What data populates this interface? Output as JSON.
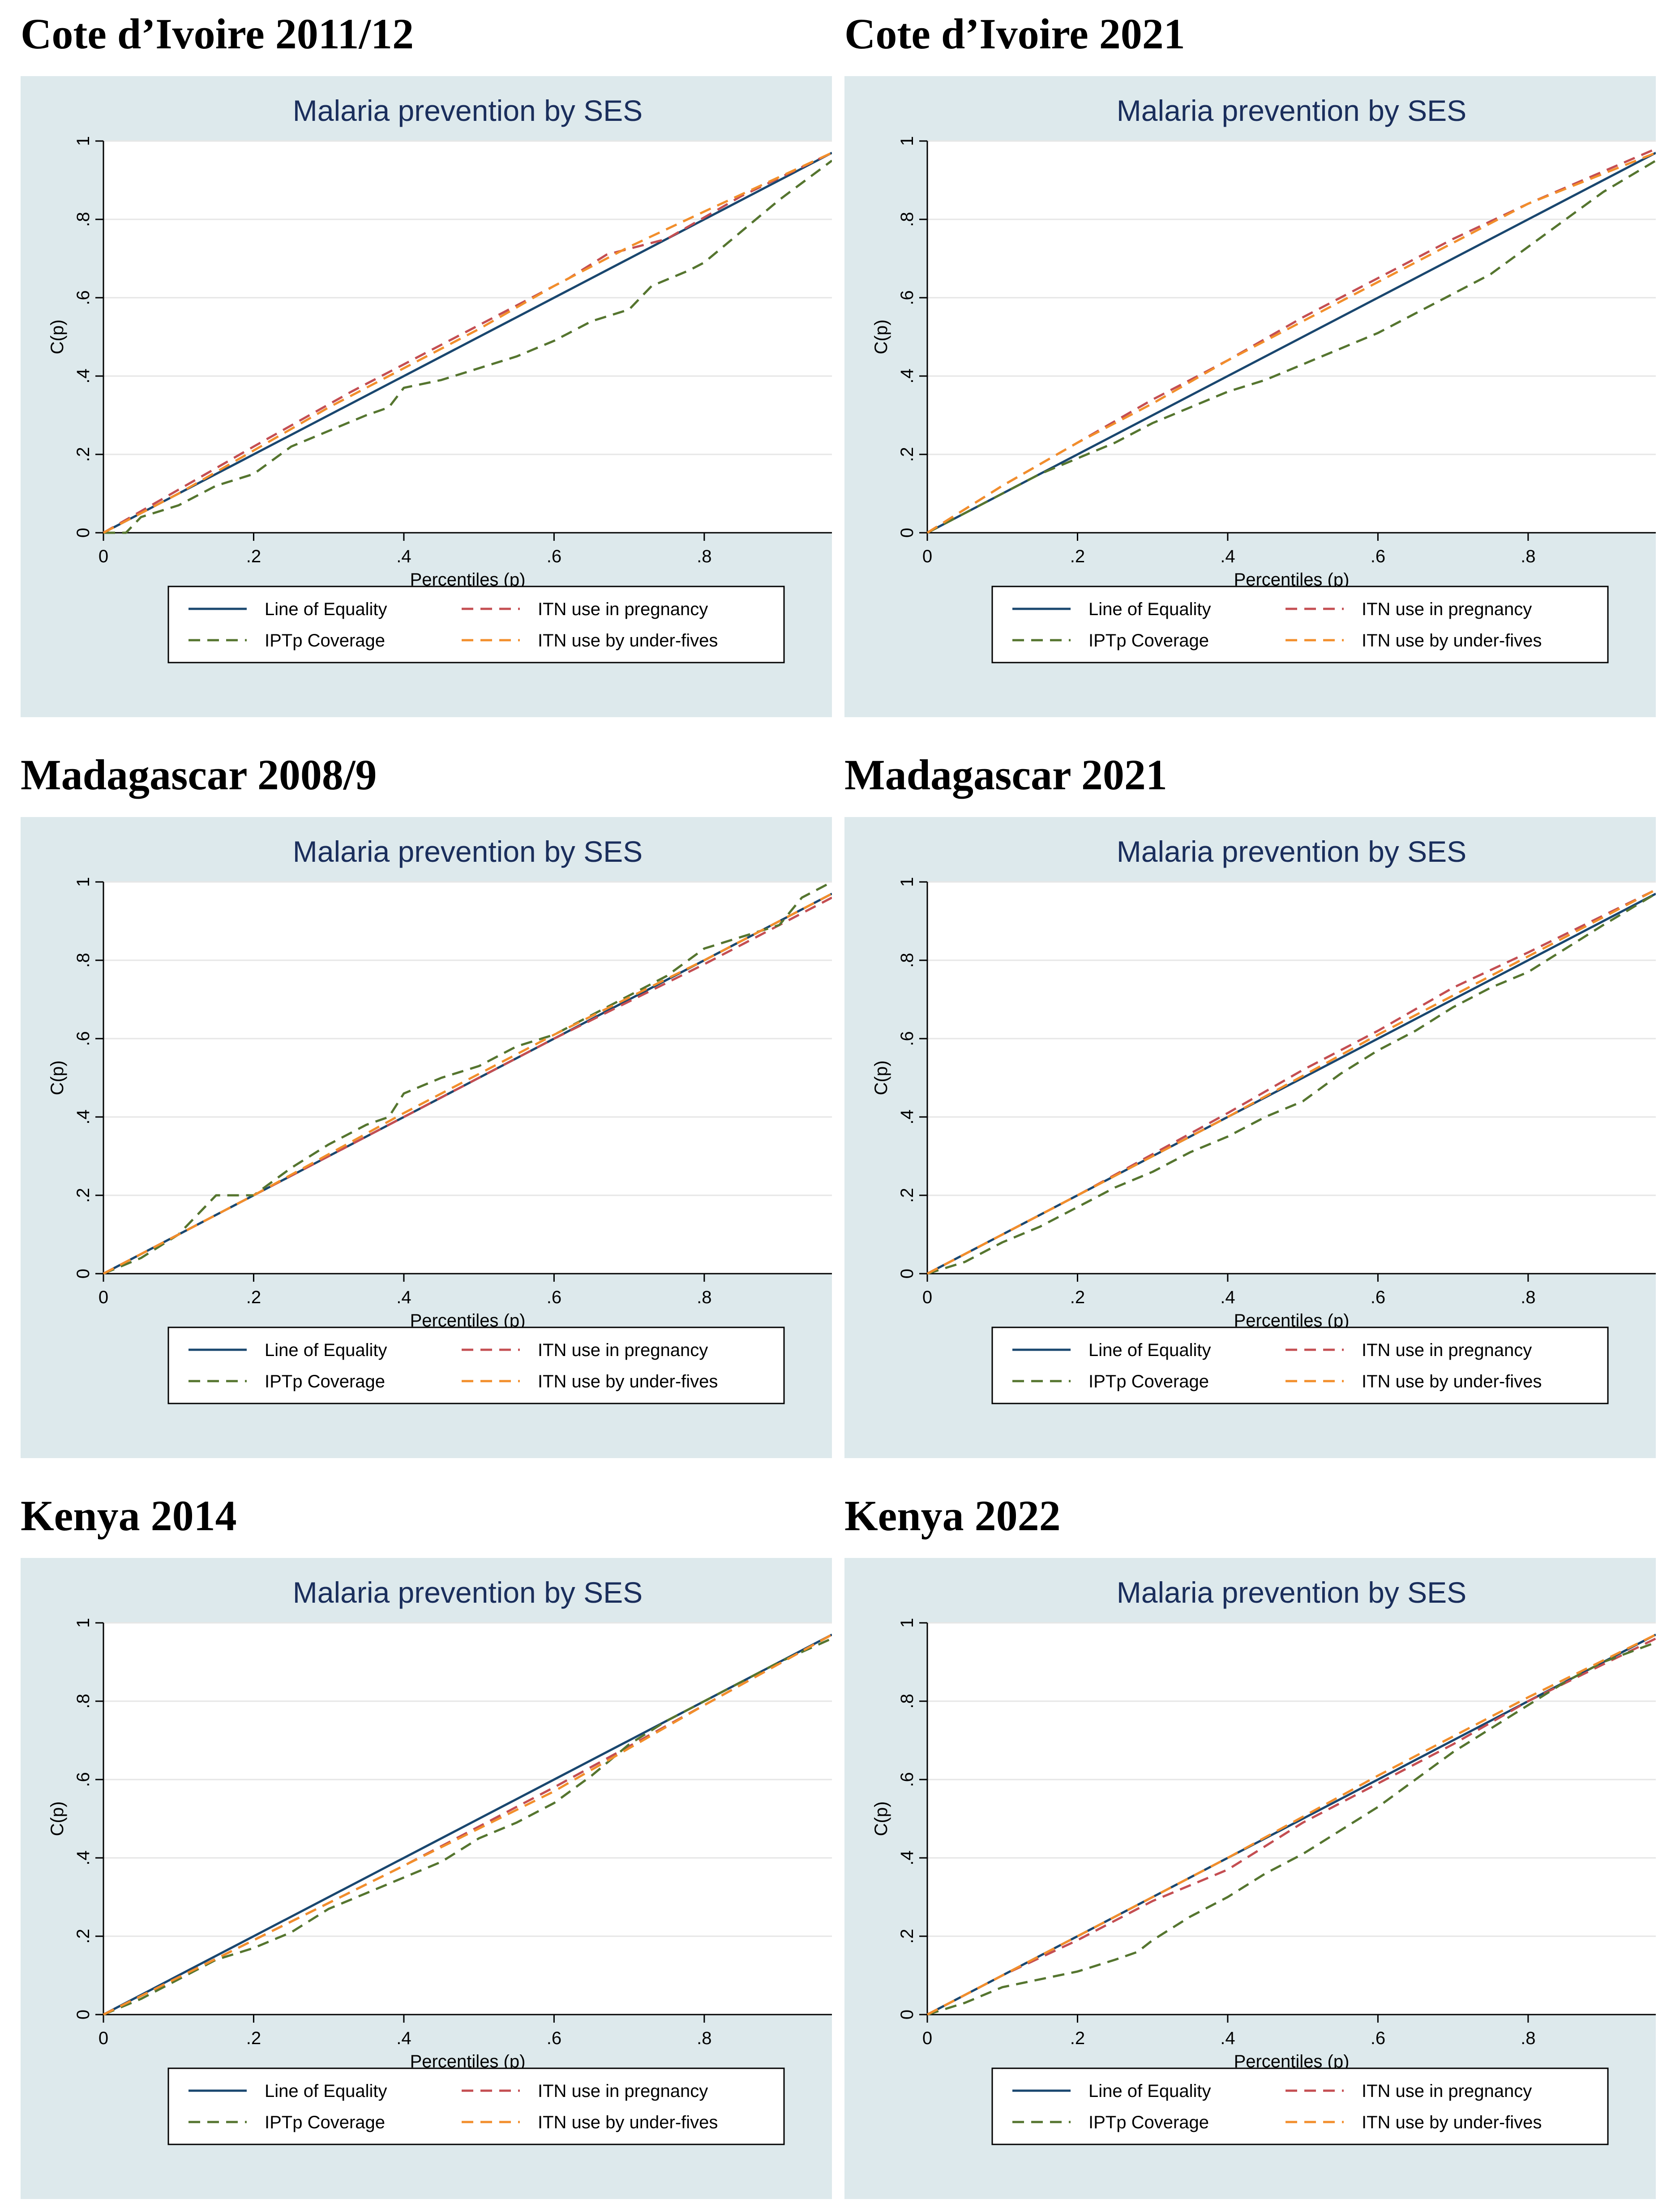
{
  "figure": {
    "panels": [
      {
        "heading": "Cote d’Ivoire 2011/12",
        "chart_index": 0
      },
      {
        "heading": "Cote d’Ivoire 2021",
        "chart_index": 1
      },
      {
        "heading": "Madagascar 2008/9",
        "chart_index": 2
      },
      {
        "heading": "Madagascar 2021",
        "chart_index": 3
      },
      {
        "heading": "Kenya 2014",
        "chart_index": 4
      },
      {
        "heading": "Kenya 2022",
        "chart_index": 5
      }
    ]
  },
  "colors": {
    "background_band": "#dde9ec",
    "plot_bg": "#ffffff",
    "title": "#1a2e5c",
    "equality": "#1a476f",
    "itn_pregnancy": "#c44e52",
    "iptp": "#55752f",
    "itn_under5": "#f28e2b"
  },
  "chart_data": [
    {
      "type": "line",
      "title": "Malaria prevention by SES",
      "xlabel": "Percentiles (p)",
      "ylabel": "C(p)",
      "xlim": [
        0,
        0.97
      ],
      "ylim": [
        0,
        1
      ],
      "xticks": [
        {
          "v": 0,
          "label": "0"
        },
        {
          "v": 0.2,
          "label": ".2"
        },
        {
          "v": 0.4,
          "label": ".4"
        },
        {
          "v": 0.6,
          "label": ".6"
        },
        {
          "v": 0.8,
          "label": ".8"
        }
      ],
      "yticks": [
        {
          "v": 0,
          "label": "0"
        },
        {
          "v": 0.2,
          "label": ".2"
        },
        {
          "v": 0.4,
          "label": ".4"
        },
        {
          "v": 0.6,
          "label": ".6"
        },
        {
          "v": 0.8,
          "label": ".8"
        },
        {
          "v": 1,
          "label": "1"
        }
      ],
      "legend_position": "bottom",
      "series": [
        {
          "name": "Line of Equality",
          "style": "solid",
          "color_key": "equality",
          "x": [
            0,
            0.97
          ],
          "y": [
            0,
            0.97
          ]
        },
        {
          "name": "ITN use in pregnancy",
          "style": "dashed",
          "color_key": "itn_pregnancy",
          "x": [
            0,
            0.1,
            0.2,
            0.33,
            0.4,
            0.5,
            0.62,
            0.67,
            0.75,
            0.85,
            0.97
          ],
          "y": [
            0,
            0.11,
            0.22,
            0.36,
            0.43,
            0.53,
            0.65,
            0.71,
            0.75,
            0.86,
            0.97
          ]
        },
        {
          "name": "IPTp Coverage",
          "style": "dashed",
          "color_key": "iptp",
          "x": [
            0,
            0.03,
            0.05,
            0.1,
            0.15,
            0.2,
            0.25,
            0.3,
            0.35,
            0.38,
            0.4,
            0.45,
            0.5,
            0.55,
            0.6,
            0.65,
            0.7,
            0.73,
            0.78,
            0.8,
            0.85,
            0.9,
            0.97
          ],
          "y": [
            0,
            0,
            0.04,
            0.07,
            0.12,
            0.15,
            0.22,
            0.26,
            0.3,
            0.32,
            0.37,
            0.39,
            0.42,
            0.45,
            0.49,
            0.54,
            0.57,
            0.63,
            0.67,
            0.69,
            0.77,
            0.85,
            0.95
          ]
        },
        {
          "name": "ITN use by under-fives",
          "style": "dashed",
          "color_key": "itn_under5",
          "x": [
            0,
            0.1,
            0.2,
            0.3,
            0.4,
            0.5,
            0.6,
            0.7,
            0.8,
            0.97
          ],
          "y": [
            0,
            0.1,
            0.21,
            0.32,
            0.42,
            0.52,
            0.63,
            0.73,
            0.82,
            0.97
          ]
        }
      ],
      "legend_order": [
        0,
        1,
        2,
        3
      ]
    },
    {
      "type": "line",
      "title": "Malaria prevention by SES",
      "xlabel": "Percentiles (p)",
      "ylabel": "C(p)",
      "xlim": [
        0,
        0.97
      ],
      "ylim": [
        0,
        1
      ],
      "xticks": [
        {
          "v": 0,
          "label": "0"
        },
        {
          "v": 0.2,
          "label": ".2"
        },
        {
          "v": 0.4,
          "label": ".4"
        },
        {
          "v": 0.6,
          "label": ".6"
        },
        {
          "v": 0.8,
          "label": ".8"
        }
      ],
      "yticks": [
        {
          "v": 0,
          "label": "0"
        },
        {
          "v": 0.2,
          "label": ".2"
        },
        {
          "v": 0.4,
          "label": ".4"
        },
        {
          "v": 0.6,
          "label": ".6"
        },
        {
          "v": 0.8,
          "label": ".8"
        },
        {
          "v": 1,
          "label": "1"
        }
      ],
      "legend_position": "bottom",
      "series": [
        {
          "name": "Line of Equality",
          "style": "solid",
          "color_key": "equality",
          "x": [
            0,
            0.97
          ],
          "y": [
            0,
            0.97
          ]
        },
        {
          "name": "ITN use in pregnancy",
          "style": "dashed",
          "color_key": "itn_pregnancy",
          "x": [
            0,
            0.1,
            0.2,
            0.3,
            0.4,
            0.5,
            0.6,
            0.7,
            0.8,
            0.97
          ],
          "y": [
            0,
            0.12,
            0.23,
            0.34,
            0.44,
            0.55,
            0.65,
            0.75,
            0.84,
            0.98
          ]
        },
        {
          "name": "IPTp Coverage",
          "style": "dashed",
          "color_key": "iptp",
          "x": [
            0,
            0.1,
            0.15,
            0.2,
            0.25,
            0.3,
            0.35,
            0.4,
            0.45,
            0.5,
            0.55,
            0.6,
            0.65,
            0.7,
            0.75,
            0.8,
            0.85,
            0.9,
            0.97
          ],
          "y": [
            0,
            0.1,
            0.15,
            0.19,
            0.23,
            0.28,
            0.32,
            0.36,
            0.39,
            0.43,
            0.47,
            0.51,
            0.56,
            0.61,
            0.66,
            0.73,
            0.8,
            0.87,
            0.95
          ]
        },
        {
          "name": "ITN use by under-fives",
          "style": "dashed",
          "color_key": "itn_under5",
          "x": [
            0,
            0.1,
            0.2,
            0.3,
            0.4,
            0.5,
            0.6,
            0.7,
            0.8,
            0.97
          ],
          "y": [
            0,
            0.12,
            0.23,
            0.33,
            0.44,
            0.54,
            0.64,
            0.74,
            0.84,
            0.97
          ]
        }
      ],
      "legend_order": [
        0,
        1,
        2,
        3
      ]
    },
    {
      "type": "line",
      "title": "Malaria prevention by SES",
      "xlabel": "Percentiles (p)",
      "ylabel": "C(p)",
      "xlim": [
        0,
        0.97
      ],
      "ylim": [
        0,
        1
      ],
      "xticks": [
        {
          "v": 0,
          "label": "0"
        },
        {
          "v": 0.2,
          "label": ".2"
        },
        {
          "v": 0.4,
          "label": ".4"
        },
        {
          "v": 0.6,
          "label": ".6"
        },
        {
          "v": 0.8,
          "label": ".8"
        }
      ],
      "yticks": [
        {
          "v": 0,
          "label": "0"
        },
        {
          "v": 0.2,
          "label": ".2"
        },
        {
          "v": 0.4,
          "label": ".4"
        },
        {
          "v": 0.6,
          "label": ".6"
        },
        {
          "v": 0.8,
          "label": ".8"
        },
        {
          "v": 1,
          "label": "1"
        }
      ],
      "legend_position": "bottom",
      "series": [
        {
          "name": "Line of Equality",
          "style": "solid",
          "color_key": "equality",
          "x": [
            0,
            0.97
          ],
          "y": [
            0,
            0.97
          ]
        },
        {
          "name": "ITN use in pregnancy",
          "style": "dashed",
          "color_key": "itn_pregnancy",
          "x": [
            0,
            0.2,
            0.4,
            0.6,
            0.8,
            0.97
          ],
          "y": [
            0,
            0.2,
            0.4,
            0.6,
            0.79,
            0.96
          ]
        },
        {
          "name": "IPTp Coverage",
          "style": "dashed",
          "color_key": "iptp",
          "x": [
            0,
            0.05,
            0.1,
            0.15,
            0.2,
            0.25,
            0.3,
            0.35,
            0.38,
            0.4,
            0.45,
            0.5,
            0.55,
            0.6,
            0.65,
            0.7,
            0.75,
            0.8,
            0.85,
            0.9,
            0.93,
            0.97
          ],
          "y": [
            0,
            0.04,
            0.1,
            0.2,
            0.2,
            0.27,
            0.33,
            0.38,
            0.4,
            0.46,
            0.5,
            0.53,
            0.58,
            0.61,
            0.66,
            0.71,
            0.76,
            0.83,
            0.86,
            0.89,
            0.96,
            1.0
          ]
        },
        {
          "name": "ITN use by under-fives",
          "style": "dashed",
          "color_key": "itn_under5",
          "x": [
            0,
            0.2,
            0.4,
            0.6,
            0.8,
            0.97
          ],
          "y": [
            0,
            0.2,
            0.41,
            0.61,
            0.8,
            0.97
          ]
        }
      ],
      "legend_order": [
        0,
        1,
        2,
        3
      ]
    },
    {
      "type": "line",
      "title": "Malaria prevention by SES",
      "xlabel": "Percentiles (p)",
      "ylabel": "C(p)",
      "xlim": [
        0,
        0.97
      ],
      "ylim": [
        0,
        1
      ],
      "xticks": [
        {
          "v": 0,
          "label": "0"
        },
        {
          "v": 0.2,
          "label": ".2"
        },
        {
          "v": 0.4,
          "label": ".4"
        },
        {
          "v": 0.6,
          "label": ".6"
        },
        {
          "v": 0.8,
          "label": ".8"
        }
      ],
      "yticks": [
        {
          "v": 0,
          "label": "0"
        },
        {
          "v": 0.2,
          "label": ".2"
        },
        {
          "v": 0.4,
          "label": ".4"
        },
        {
          "v": 0.6,
          "label": ".6"
        },
        {
          "v": 0.8,
          "label": ".8"
        },
        {
          "v": 1,
          "label": "1"
        }
      ],
      "legend_position": "bottom",
      "series": [
        {
          "name": "Line of Equality",
          "style": "solid",
          "color_key": "equality",
          "x": [
            0,
            0.97
          ],
          "y": [
            0,
            0.97
          ]
        },
        {
          "name": "ITN use in pregnancy",
          "style": "dashed",
          "color_key": "itn_pregnancy",
          "x": [
            0,
            0.2,
            0.4,
            0.5,
            0.6,
            0.7,
            0.8,
            0.97
          ],
          "y": [
            0,
            0.2,
            0.41,
            0.52,
            0.62,
            0.73,
            0.82,
            0.98
          ]
        },
        {
          "name": "IPTp Coverage",
          "style": "dashed",
          "color_key": "iptp",
          "x": [
            0,
            0.05,
            0.1,
            0.15,
            0.2,
            0.25,
            0.3,
            0.35,
            0.4,
            0.45,
            0.5,
            0.55,
            0.6,
            0.65,
            0.7,
            0.75,
            0.8,
            0.85,
            0.9,
            0.97
          ],
          "y": [
            0,
            0.03,
            0.08,
            0.12,
            0.17,
            0.22,
            0.26,
            0.31,
            0.35,
            0.4,
            0.44,
            0.51,
            0.57,
            0.62,
            0.68,
            0.73,
            0.77,
            0.83,
            0.89,
            0.97
          ]
        },
        {
          "name": "ITN use by under-fives",
          "style": "dashed",
          "color_key": "itn_under5",
          "x": [
            0,
            0.2,
            0.4,
            0.6,
            0.8,
            0.97
          ],
          "y": [
            0,
            0.2,
            0.4,
            0.61,
            0.81,
            0.98
          ]
        }
      ],
      "legend_order": [
        0,
        1,
        2,
        3
      ]
    },
    {
      "type": "line",
      "title": "Malaria prevention by SES",
      "xlabel": "Percentiles (p)",
      "ylabel": "C(p)",
      "xlim": [
        0,
        0.97
      ],
      "ylim": [
        0,
        1
      ],
      "xticks": [
        {
          "v": 0,
          "label": "0"
        },
        {
          "v": 0.2,
          "label": ".2"
        },
        {
          "v": 0.4,
          "label": ".4"
        },
        {
          "v": 0.6,
          "label": ".6"
        },
        {
          "v": 0.8,
          "label": ".8"
        }
      ],
      "yticks": [
        {
          "v": 0,
          "label": "0"
        },
        {
          "v": 0.2,
          "label": ".2"
        },
        {
          "v": 0.4,
          "label": ".4"
        },
        {
          "v": 0.6,
          "label": ".6"
        },
        {
          "v": 0.8,
          "label": ".8"
        },
        {
          "v": 1,
          "label": "1"
        }
      ],
      "legend_position": "bottom",
      "series": [
        {
          "name": "Line of Equality",
          "style": "solid",
          "color_key": "equality",
          "x": [
            0,
            0.97
          ],
          "y": [
            0,
            0.97
          ]
        },
        {
          "name": "ITN use in pregnancy",
          "style": "dashed",
          "color_key": "itn_pregnancy",
          "x": [
            0,
            0.2,
            0.4,
            0.6,
            0.8,
            0.97
          ],
          "y": [
            0,
            0.19,
            0.38,
            0.58,
            0.79,
            0.97
          ]
        },
        {
          "name": "IPTp Coverage",
          "style": "dashed",
          "color_key": "iptp",
          "x": [
            0,
            0.05,
            0.1,
            0.15,
            0.2,
            0.25,
            0.3,
            0.35,
            0.4,
            0.45,
            0.5,
            0.55,
            0.6,
            0.65,
            0.7,
            0.75,
            0.8,
            0.85,
            0.9,
            0.97
          ],
          "y": [
            0,
            0.04,
            0.09,
            0.14,
            0.17,
            0.21,
            0.27,
            0.31,
            0.35,
            0.39,
            0.45,
            0.49,
            0.54,
            0.61,
            0.69,
            0.75,
            0.8,
            0.85,
            0.9,
            0.96
          ]
        },
        {
          "name": "ITN use by under-fives",
          "style": "dashed",
          "color_key": "itn_under5",
          "x": [
            0,
            0.2,
            0.4,
            0.6,
            0.8,
            0.97
          ],
          "y": [
            0,
            0.19,
            0.38,
            0.57,
            0.79,
            0.97
          ]
        }
      ],
      "legend_order": [
        0,
        1,
        2,
        3
      ]
    },
    {
      "type": "line",
      "title": "Malaria prevention by SES",
      "xlabel": "Percentiles (p)",
      "ylabel": "C(p)",
      "xlim": [
        0,
        0.97
      ],
      "ylim": [
        0,
        1
      ],
      "xticks": [
        {
          "v": 0,
          "label": "0"
        },
        {
          "v": 0.2,
          "label": ".2"
        },
        {
          "v": 0.4,
          "label": ".4"
        },
        {
          "v": 0.6,
          "label": ".6"
        },
        {
          "v": 0.8,
          "label": ".8"
        }
      ],
      "yticks": [
        {
          "v": 0,
          "label": "0"
        },
        {
          "v": 0.2,
          "label": ".2"
        },
        {
          "v": 0.4,
          "label": ".4"
        },
        {
          "v": 0.6,
          "label": ".6"
        },
        {
          "v": 0.8,
          "label": ".8"
        },
        {
          "v": 1,
          "label": "1"
        }
      ],
      "legend_position": "bottom",
      "series": [
        {
          "name": "Line of Equality",
          "style": "solid",
          "color_key": "equality",
          "x": [
            0,
            0.97
          ],
          "y": [
            0,
            0.97
          ]
        },
        {
          "name": "ITN use in pregnancy",
          "style": "dashed",
          "color_key": "itn_pregnancy",
          "x": [
            0,
            0.1,
            0.2,
            0.3,
            0.4,
            0.5,
            0.6,
            0.7,
            0.8,
            0.97
          ],
          "y": [
            0,
            0.1,
            0.19,
            0.29,
            0.37,
            0.49,
            0.59,
            0.69,
            0.8,
            0.96
          ]
        },
        {
          "name": "IPTp Coverage",
          "style": "dashed",
          "color_key": "iptp",
          "x": [
            0,
            0.05,
            0.1,
            0.15,
            0.2,
            0.25,
            0.28,
            0.3,
            0.35,
            0.4,
            0.45,
            0.5,
            0.55,
            0.6,
            0.65,
            0.7,
            0.75,
            0.8,
            0.85,
            0.9,
            0.97
          ],
          "y": [
            0,
            0.03,
            0.07,
            0.09,
            0.11,
            0.14,
            0.16,
            0.19,
            0.25,
            0.3,
            0.36,
            0.41,
            0.47,
            0.53,
            0.6,
            0.67,
            0.73,
            0.79,
            0.85,
            0.9,
            0.95
          ]
        },
        {
          "name": "ITN use by under-fives",
          "style": "dashed",
          "color_key": "itn_under5",
          "x": [
            0,
            0.2,
            0.4,
            0.6,
            0.8,
            0.97
          ],
          "y": [
            0,
            0.2,
            0.4,
            0.61,
            0.81,
            0.97
          ]
        }
      ],
      "legend_order": [
        0,
        1,
        2,
        3
      ]
    }
  ]
}
